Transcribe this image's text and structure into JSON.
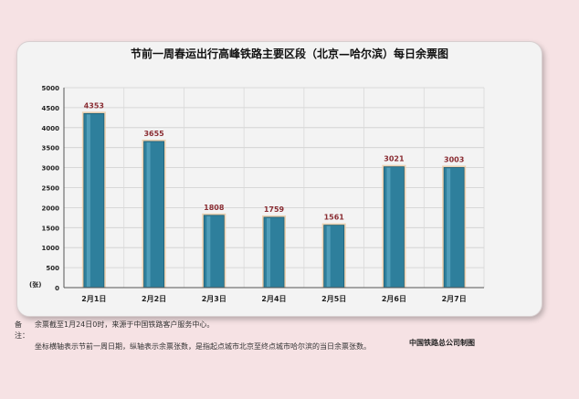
{
  "chart_data": {
    "type": "bar",
    "title": "节前一周春运出行高峰铁路主要区段（北京—哈尔滨）每日余票图",
    "categories": [
      "2月1日",
      "2月2日",
      "2月3日",
      "2月4日",
      "2月5日",
      "2月6日",
      "2月7日"
    ],
    "values": [
      4353,
      3655,
      1808,
      1759,
      1561,
      3021,
      3003
    ],
    "ylabel": "(张)",
    "ylim": [
      0,
      5000
    ],
    "yticks": [
      0,
      500,
      1000,
      1500,
      2000,
      2500,
      3000,
      3500,
      4000,
      4500,
      5000
    ],
    "grid": true,
    "bar_color": "#2e7f9c",
    "label_color": "#8a2d33"
  },
  "footer": {
    "note_label": "备注：",
    "note_line1": "余票截至1月24日0时，来源于中国铁路客户服务中心。",
    "note_line2": "坐标横轴表示节前一周日期，纵轴表示余票张数，是指起点城市北京至终点城市哈尔滨的当日余票张数。",
    "source": "中国铁路总公司制图"
  }
}
